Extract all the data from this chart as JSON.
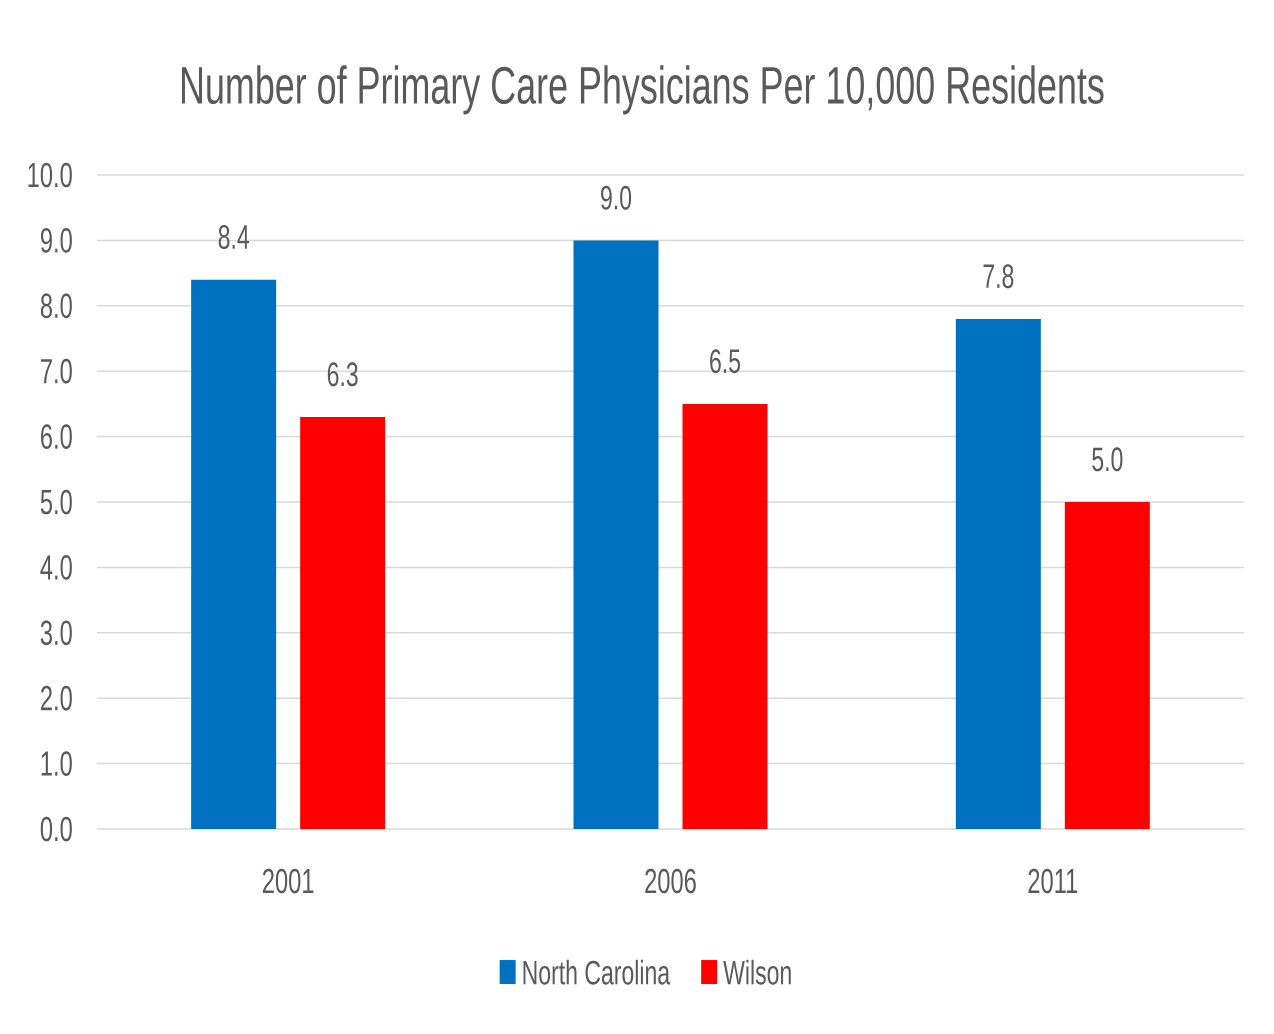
{
  "chart_data": {
    "type": "bar",
    "title": "Number of Primary Care Physicians Per 10,000 Residents",
    "categories": [
      "2001",
      "2006",
      "2011"
    ],
    "series": [
      {
        "name": "North Carolina",
        "color": "#0070c0",
        "values": [
          8.4,
          9.0,
          7.8
        ],
        "value_labels": [
          "8.4",
          "9.0",
          "7.8"
        ]
      },
      {
        "name": "Wilson",
        "color": "#ff0000",
        "values": [
          6.3,
          6.5,
          5.0
        ],
        "value_labels": [
          "6.3",
          "6.5",
          "5.0"
        ]
      }
    ],
    "ylim": [
      0,
      10
    ],
    "yticks": [
      {
        "value": 0,
        "label": "0.0"
      },
      {
        "value": 1,
        "label": "1.0"
      },
      {
        "value": 2,
        "label": "2.0"
      },
      {
        "value": 3,
        "label": "3.0"
      },
      {
        "value": 4,
        "label": "4.0"
      },
      {
        "value": 5,
        "label": "5.0"
      },
      {
        "value": 6,
        "label": "6.0"
      },
      {
        "value": 7,
        "label": "7.0"
      },
      {
        "value": 8,
        "label": "8.0"
      },
      {
        "value": 9,
        "label": "9.0"
      },
      {
        "value": 10,
        "label": "10.0"
      }
    ],
    "grid": "y",
    "legend": "bottom"
  }
}
